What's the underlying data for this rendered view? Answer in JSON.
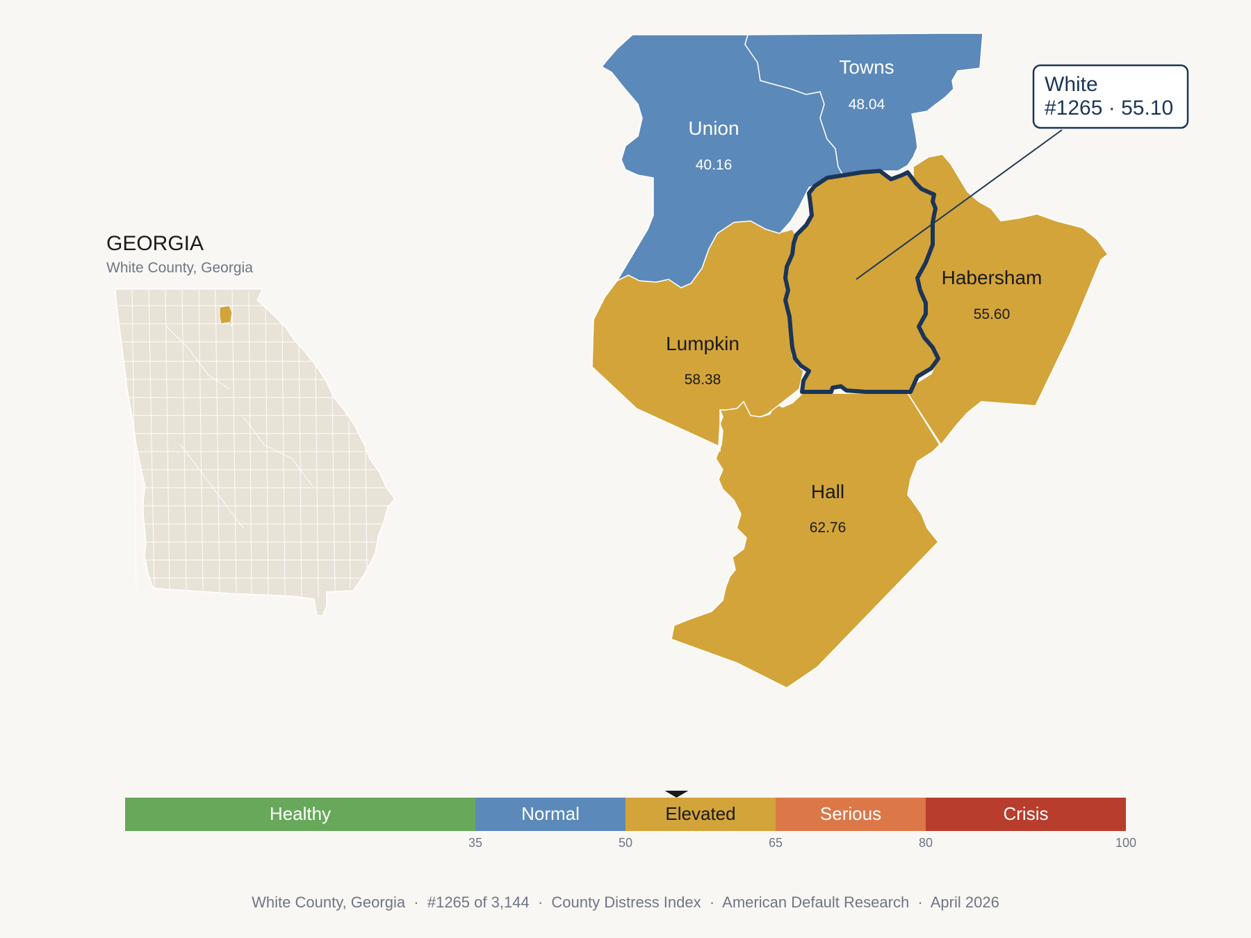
{
  "state": {
    "name": "GEORGIA",
    "subtitle": "White County, Georgia"
  },
  "counties": [
    {
      "name": "Towns",
      "value": "48.04",
      "band": "Normal"
    },
    {
      "name": "Union",
      "value": "40.16",
      "band": "Normal"
    },
    {
      "name": "Lumpkin",
      "value": "58.38",
      "band": "Elevated"
    },
    {
      "name": "Habersham",
      "value": "55.60",
      "band": "Elevated"
    },
    {
      "name": "Hall",
      "value": "62.76",
      "band": "Elevated"
    },
    {
      "name": "White",
      "value": "55.10",
      "band": "Elevated",
      "highlighted": true
    }
  ],
  "callout": {
    "line1": "White",
    "line2": "#1265 · 55.10"
  },
  "scale": {
    "bands": [
      {
        "label": "Healthy",
        "from": 0,
        "to": 35,
        "color": "#67a85a"
      },
      {
        "label": "Normal",
        "from": 35,
        "to": 50,
        "color": "#5b89b9"
      },
      {
        "label": "Elevated",
        "from": 50,
        "to": 65,
        "color": "#d3a43a"
      },
      {
        "label": "Serious",
        "from": 65,
        "to": 80,
        "color": "#dc7748"
      },
      {
        "label": "Crisis",
        "from": 80,
        "to": 100,
        "color": "#b83d2c"
      }
    ],
    "ticks": [
      "35",
      "50",
      "65",
      "80",
      "100"
    ],
    "marker_value": 55.1
  },
  "footer": "White County, Georgia  ·  #1265 of 3,144  ·  County Distress Index  ·  American Default Research  ·  April 2026",
  "colors": {
    "normal": "#5b89b9",
    "elevated": "#d3a43a",
    "highlight_outline": "#1c3557",
    "inset_fill": "#e8e2d7",
    "background": "#f9f7f3"
  }
}
